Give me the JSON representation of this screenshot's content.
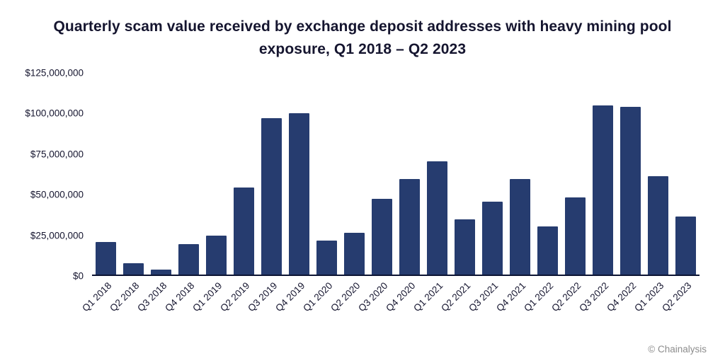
{
  "chart_data": {
    "type": "bar",
    "title": "Quarterly scam value received by exchange deposit addresses with heavy mining pool exposure, Q1 2018 – Q2 2023",
    "categories": [
      "Q1 2018",
      "Q2 2018",
      "Q3 2018",
      "Q4 2018",
      "Q1 2019",
      "Q2 2019",
      "Q3 2019",
      "Q4 2019",
      "Q1 2020",
      "Q2 2020",
      "Q3 2020",
      "Q4 2020",
      "Q1 2021",
      "Q2 2021",
      "Q3 2021",
      "Q4 2021",
      "Q1 2022",
      "Q2 2022",
      "Q3 2022",
      "Q4 2022",
      "Q1 2023",
      "Q2 2023"
    ],
    "values": [
      20000000,
      7000000,
      3000000,
      19000000,
      24000000,
      54000000,
      97000000,
      100000000,
      21000000,
      26000000,
      47000000,
      59000000,
      70000000,
      34000000,
      45000000,
      59000000,
      30000000,
      48000000,
      105000000,
      104000000,
      61000000,
      36000000
    ],
    "xlabel": "",
    "ylabel": "",
    "ylim": [
      0,
      125000000
    ],
    "grid": false,
    "legend": false,
    "bar_color": "#263c6f",
    "y_ticks": [
      {
        "value": 0,
        "label": "$0"
      },
      {
        "value": 25000000,
        "label": "$25,000,000"
      },
      {
        "value": 50000000,
        "label": "$50,000,000"
      },
      {
        "value": 75000000,
        "label": "$75,000,000"
      },
      {
        "value": 100000000,
        "label": "$100,000,000"
      },
      {
        "value": 125000000,
        "label": "$125,000,000"
      }
    ]
  },
  "footer": {
    "attribution": "© Chainalysis"
  },
  "colors": {
    "axis": "#0c1433",
    "text": "#15152f",
    "attribution": "#8c8c8c",
    "background": "#ffffff"
  }
}
